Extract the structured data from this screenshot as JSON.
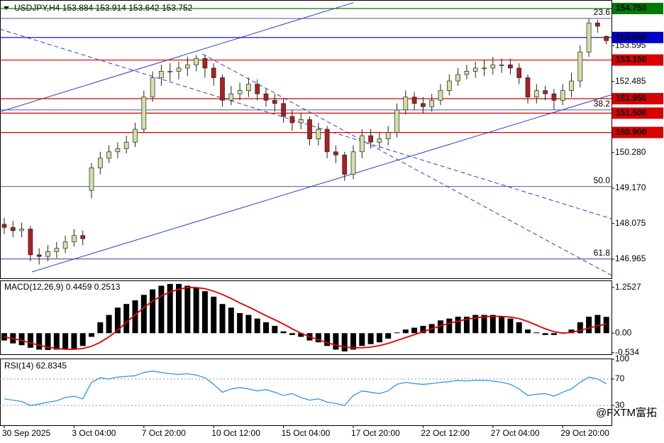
{
  "chart_data": [
    {
      "type": "candlestick",
      "title": "USDJPY,H4  153.884 153.914 153.642 153.752",
      "categories": [
        "30 Sep 2025",
        null,
        null,
        null,
        null,
        null,
        null,
        null,
        "3 Oct 04:00",
        null,
        null,
        null,
        null,
        null,
        null,
        null,
        "7 Oct 20:00",
        null,
        null,
        null,
        null,
        null,
        null,
        null,
        "10 Oct 12:00",
        null,
        null,
        null,
        null,
        null,
        null,
        null,
        "15 Oct 04:00",
        null,
        null,
        null,
        null,
        null,
        null,
        null,
        "17 Oct 20:00",
        null,
        null,
        null,
        null,
        null,
        null,
        null,
        "22 Oct 12:00",
        null,
        null,
        null,
        null,
        null,
        null,
        null,
        "27 Oct 04:00",
        null,
        null,
        null,
        null,
        null,
        null,
        null,
        "29 Oct 20:00",
        null,
        null,
        null,
        null,
        null
      ],
      "open": [
        148.05,
        147.95,
        147.85,
        147.9,
        147.1,
        147.05,
        147.2,
        147.3,
        147.5,
        147.7,
        149.1,
        149.8,
        150.1,
        150.3,
        150.4,
        150.6,
        151.0,
        152.0,
        152.6,
        152.8,
        152.8,
        152.9,
        153.0,
        153.2,
        152.9,
        152.6,
        151.9,
        152.1,
        152.2,
        152.4,
        152.1,
        151.9,
        151.8,
        151.4,
        151.2,
        151.3,
        150.7,
        151.0,
        150.3,
        150.2,
        149.6,
        150.3,
        150.8,
        150.6,
        150.7,
        150.9,
        151.6,
        152.0,
        151.8,
        151.7,
        151.9,
        152.2,
        152.5,
        152.7,
        152.8,
        152.9,
        152.9,
        153.0,
        153.0,
        152.9,
        152.6,
        152.0,
        152.2,
        152.1,
        151.9,
        152.2,
        152.5,
        153.4,
        154.3,
        153.884
      ],
      "high": [
        148.25,
        148.15,
        148.1,
        148.0,
        147.3,
        147.4,
        147.5,
        147.7,
        147.9,
        147.85,
        149.95,
        150.3,
        150.5,
        150.6,
        150.8,
        151.2,
        152.2,
        152.8,
        153.0,
        153.05,
        153.1,
        153.25,
        153.3,
        153.3,
        153.05,
        152.7,
        152.35,
        152.45,
        152.6,
        152.55,
        152.25,
        152.1,
        151.95,
        151.6,
        151.5,
        151.4,
        151.2,
        151.1,
        150.5,
        150.3,
        150.5,
        151.0,
        151.0,
        150.9,
        151.1,
        151.8,
        152.2,
        152.15,
        152.0,
        152.1,
        152.4,
        152.7,
        152.9,
        153.0,
        153.1,
        153.15,
        153.25,
        153.2,
        153.2,
        153.05,
        152.7,
        152.4,
        152.35,
        152.25,
        152.4,
        152.75,
        153.6,
        154.45,
        154.4,
        153.914
      ],
      "low": [
        147.75,
        147.65,
        147.65,
        146.9,
        146.8,
        146.9,
        147.0,
        147.15,
        147.35,
        147.4,
        148.85,
        149.6,
        149.95,
        150.1,
        150.25,
        150.45,
        150.9,
        151.85,
        152.35,
        152.5,
        152.55,
        152.65,
        152.8,
        152.6,
        152.35,
        151.7,
        151.75,
        151.9,
        152.0,
        151.9,
        151.7,
        151.55,
        151.2,
        150.95,
        151.0,
        150.5,
        150.5,
        150.1,
        149.95,
        149.4,
        149.45,
        150.1,
        150.4,
        150.4,
        150.5,
        150.75,
        151.45,
        151.6,
        151.5,
        151.55,
        151.75,
        152.05,
        152.35,
        152.55,
        152.6,
        152.65,
        152.7,
        152.75,
        152.7,
        152.4,
        151.8,
        151.8,
        151.9,
        151.6,
        151.75,
        152.0,
        152.3,
        153.25,
        154.0,
        153.642
      ],
      "close": [
        147.95,
        147.85,
        147.9,
        147.1,
        147.05,
        147.2,
        147.3,
        147.5,
        147.7,
        147.6,
        149.8,
        150.1,
        150.3,
        150.4,
        150.6,
        151.0,
        152.0,
        152.6,
        152.8,
        152.8,
        152.9,
        153.0,
        153.2,
        152.9,
        152.6,
        151.9,
        152.1,
        152.2,
        152.4,
        152.1,
        151.9,
        151.8,
        151.4,
        151.2,
        151.3,
        150.7,
        151.0,
        150.3,
        150.2,
        149.6,
        150.3,
        150.8,
        150.6,
        150.7,
        150.9,
        151.6,
        152.0,
        151.8,
        151.7,
        151.9,
        152.2,
        152.5,
        152.7,
        152.8,
        152.9,
        152.9,
        153.0,
        153.0,
        152.9,
        152.6,
        152.0,
        152.2,
        152.1,
        151.9,
        152.2,
        152.5,
        153.4,
        154.3,
        154.2,
        153.752
      ],
      "up_color": "#cfe3a5",
      "down_color": "#b01e1e",
      "ylim": [
        146.371,
        154.992
      ],
      "yticks": [
        153.595,
        152.485,
        {
          "value": 150.28,
          "label": "150.280"
        },
        {
          "value": 149.17,
          "label": "149.170"
        },
        148.075,
        146.965
      ],
      "levels": [
        {
          "value": 154.75,
          "label": "154.750",
          "color": "#007a00"
        },
        {
          "value": 153.85,
          "label": "153.850",
          "color": "#0000c8"
        },
        {
          "value": 153.15,
          "label": "153.150",
          "color": "#d80000"
        },
        {
          "value": 151.95,
          "label": "151.950",
          "color": "#d80000"
        },
        {
          "value": 151.5,
          "label": "151.500",
          "color": "#d80000"
        },
        {
          "value": 150.9,
          "label": "150.900",
          "color": "#d80000"
        }
      ],
      "fib_levels": [
        {
          "value": 154.44,
          "label": "23.6"
        },
        {
          "value": 151.6,
          "label": "38.2"
        },
        {
          "value": 149.22,
          "label": "50.0"
        },
        {
          "value": 146.97,
          "label": "61.8"
        }
      ],
      "trendlines": [
        {
          "style": "solid",
          "color": "#2a3fd0",
          "x": [
            -0.5,
            40
          ],
          "y": [
            151.54,
            154.93
          ]
        },
        {
          "style": "solid",
          "color": "#2a3fd0",
          "x": [
            3.17,
            69.6
          ],
          "y": [
            146.57,
            152.07
          ]
        },
        {
          "style": "dashed",
          "color": "#2a3fd0",
          "x": [
            -0.5,
            69.6
          ],
          "y": [
            154.11,
            148.22
          ]
        },
        {
          "style": "dashed",
          "color": "#2a3fd0",
          "x": [
            22.7,
            69.6
          ],
          "y": [
            153.34,
            146.46
          ]
        }
      ],
      "watermark": "@FXTM富拓"
    },
    {
      "type": "macd",
      "title": "MACD(12,26,9) 0.4459 0.2513",
      "histogram": [
        -0.2,
        -0.28,
        -0.33,
        -0.4,
        -0.45,
        -0.46,
        -0.45,
        -0.44,
        -0.42,
        -0.35,
        -0.1,
        0.3,
        0.5,
        0.7,
        0.8,
        0.9,
        1.05,
        1.2,
        1.3,
        1.35,
        1.35,
        1.3,
        1.25,
        1.15,
        1.0,
        0.8,
        0.7,
        0.55,
        0.5,
        0.4,
        0.3,
        0.2,
        0.05,
        -0.05,
        -0.1,
        -0.2,
        -0.25,
        -0.35,
        -0.45,
        -0.5,
        -0.45,
        -0.35,
        -0.3,
        -0.25,
        -0.15,
        0.02,
        0.1,
        0.15,
        0.2,
        0.25,
        0.35,
        0.4,
        0.45,
        0.45,
        0.5,
        0.5,
        0.5,
        0.45,
        0.4,
        0.3,
        0.1,
        0.02,
        -0.05,
        -0.05,
        0.02,
        0.1,
        0.3,
        0.45,
        0.5,
        0.4459
      ],
      "hist_color": "#000000",
      "signal": [
        -0.1,
        -0.15,
        -0.2,
        -0.27,
        -0.33,
        -0.38,
        -0.42,
        -0.44,
        -0.44,
        -0.42,
        -0.36,
        -0.25,
        -0.1,
        0.08,
        0.3,
        0.5,
        0.7,
        0.88,
        1.02,
        1.13,
        1.2,
        1.25,
        1.25,
        1.22,
        1.15,
        1.06,
        0.95,
        0.83,
        0.72,
        0.6,
        0.48,
        0.37,
        0.25,
        0.12,
        0.0,
        -0.1,
        -0.18,
        -0.26,
        -0.33,
        -0.38,
        -0.4,
        -0.4,
        -0.38,
        -0.34,
        -0.28,
        -0.2,
        -0.12,
        -0.04,
        0.04,
        0.12,
        0.2,
        0.27,
        0.33,
        0.38,
        0.42,
        0.45,
        0.46,
        0.46,
        0.44,
        0.4,
        0.32,
        0.22,
        0.12,
        0.04,
        0.0,
        0.02,
        0.08,
        0.14,
        0.2,
        0.2513
      ],
      "signal_color": "#e00000",
      "ylim": [
        -0.597,
        1.426
      ],
      "yticks": [
        1.2527,
        {
          "value": 0,
          "label": "0.00"
        },
        -0.534
      ]
    },
    {
      "type": "line",
      "title": "RSI(14) 62.8345",
      "values": [
        40,
        38,
        36,
        30,
        32,
        35,
        37,
        42,
        44,
        40,
        65,
        72,
        70,
        73,
        74,
        75,
        80,
        82,
        80,
        78,
        77,
        78,
        76,
        72,
        62,
        50,
        55,
        57,
        55,
        52,
        54,
        50,
        45,
        48,
        42,
        38,
        40,
        35,
        33,
        30,
        45,
        52,
        50,
        48,
        52,
        62,
        65,
        63,
        62,
        63,
        65,
        66,
        68,
        67,
        68,
        68,
        67,
        65,
        62,
        55,
        45,
        47,
        48,
        44,
        50,
        55,
        65,
        73,
        70,
        62.8345
      ],
      "color": "#1e8fe8",
      "ylim": [
        0,
        100
      ],
      "yticks": [
        100,
        70,
        30
      ],
      "levels": [
        70,
        30
      ]
    }
  ]
}
